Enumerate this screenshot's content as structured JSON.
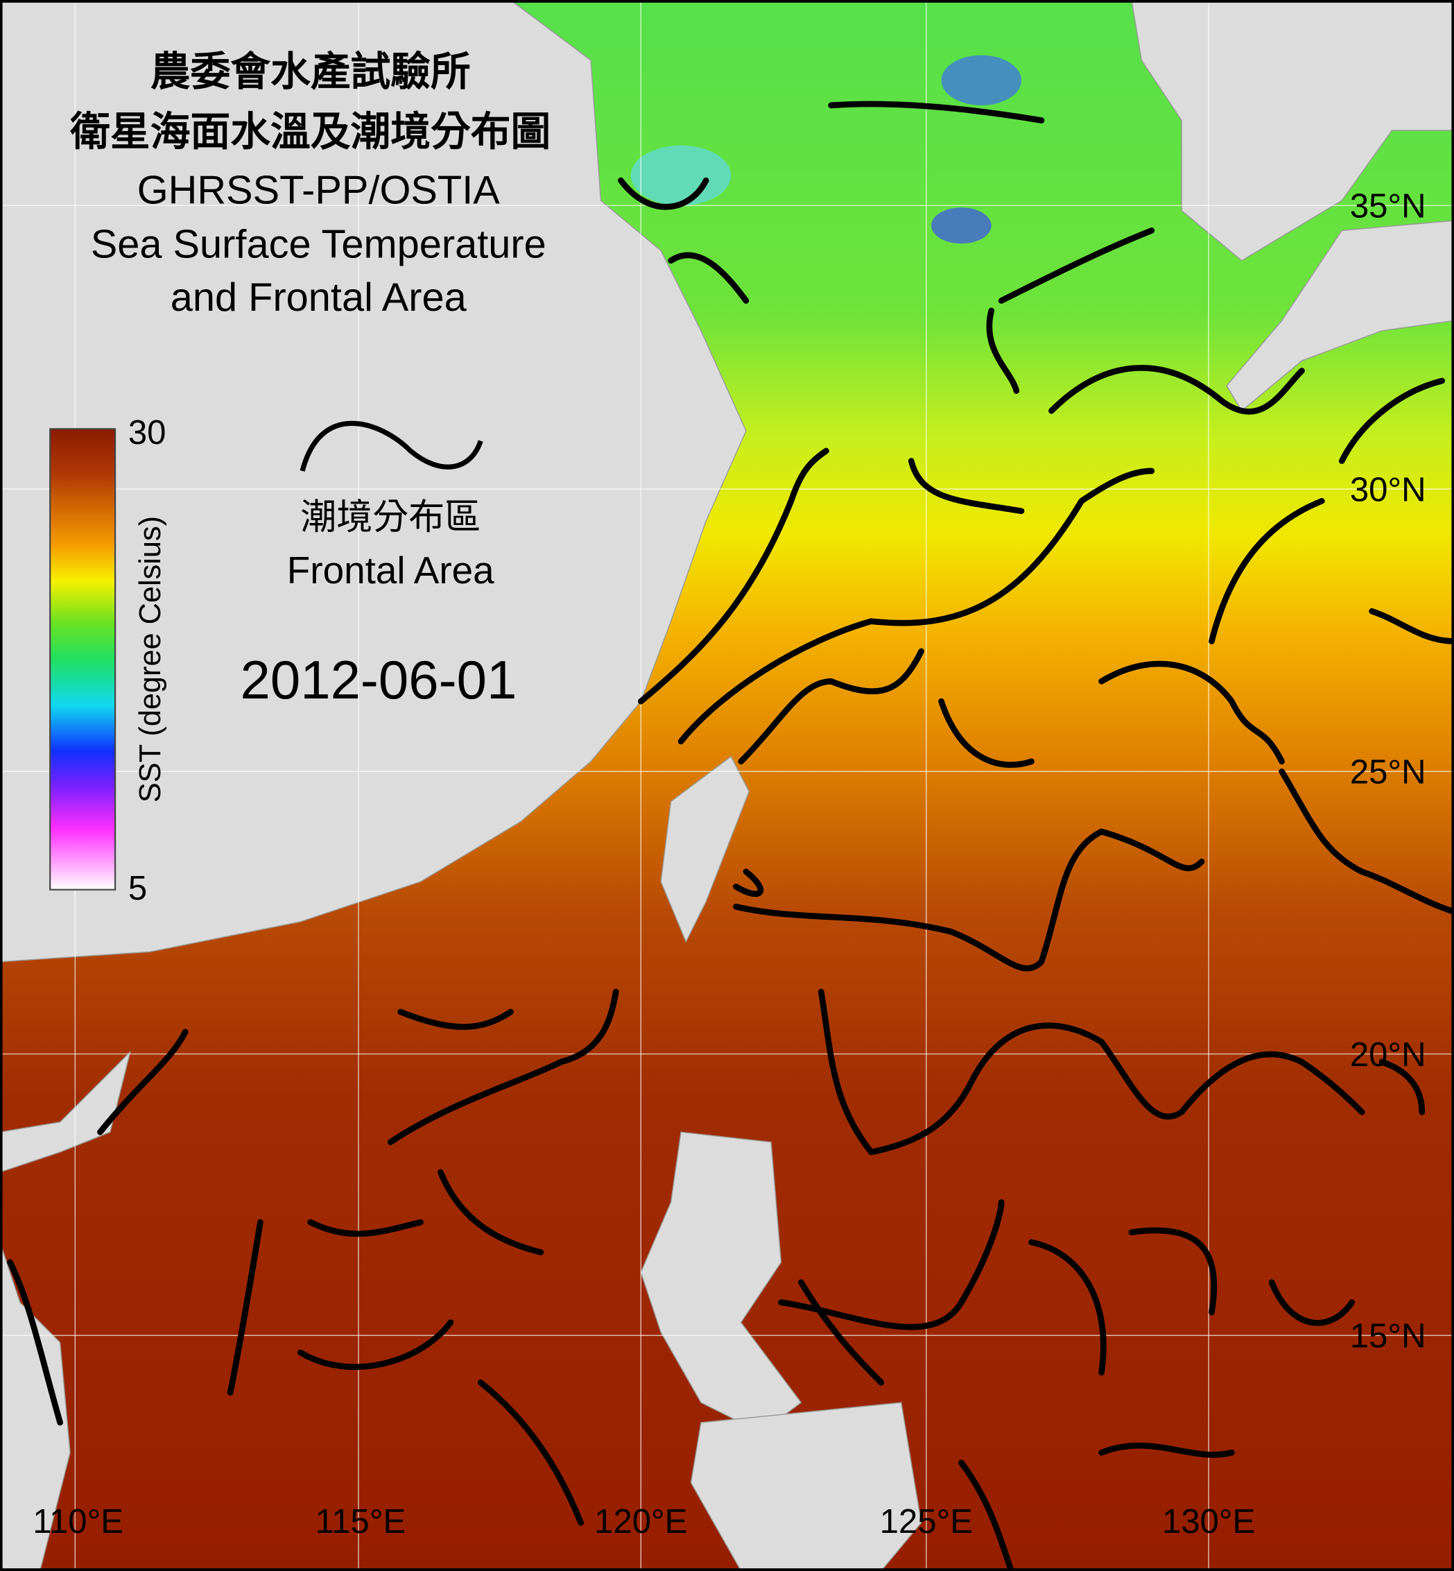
{
  "title": {
    "line1": "農委會水產試驗所",
    "line2": "衛星海面水溫及潮境分布圖",
    "line3": "GHRSST-PP/OSTIA",
    "line4": "Sea Surface Temperature",
    "line5": "and Frontal Area"
  },
  "colorbar": {
    "label": "SST (degree Celsius)",
    "max": 30,
    "min": 5
  },
  "legend": {
    "label_zh": "潮境分布區",
    "label_en": "Frontal Area"
  },
  "date": "2012-06-01",
  "latitude_labels": [
    "35°N",
    "30°N",
    "25°N",
    "20°N",
    "15°N"
  ],
  "longitude_labels": [
    "110°E",
    "115°E",
    "120°E",
    "125°E",
    "130°E"
  ]
}
